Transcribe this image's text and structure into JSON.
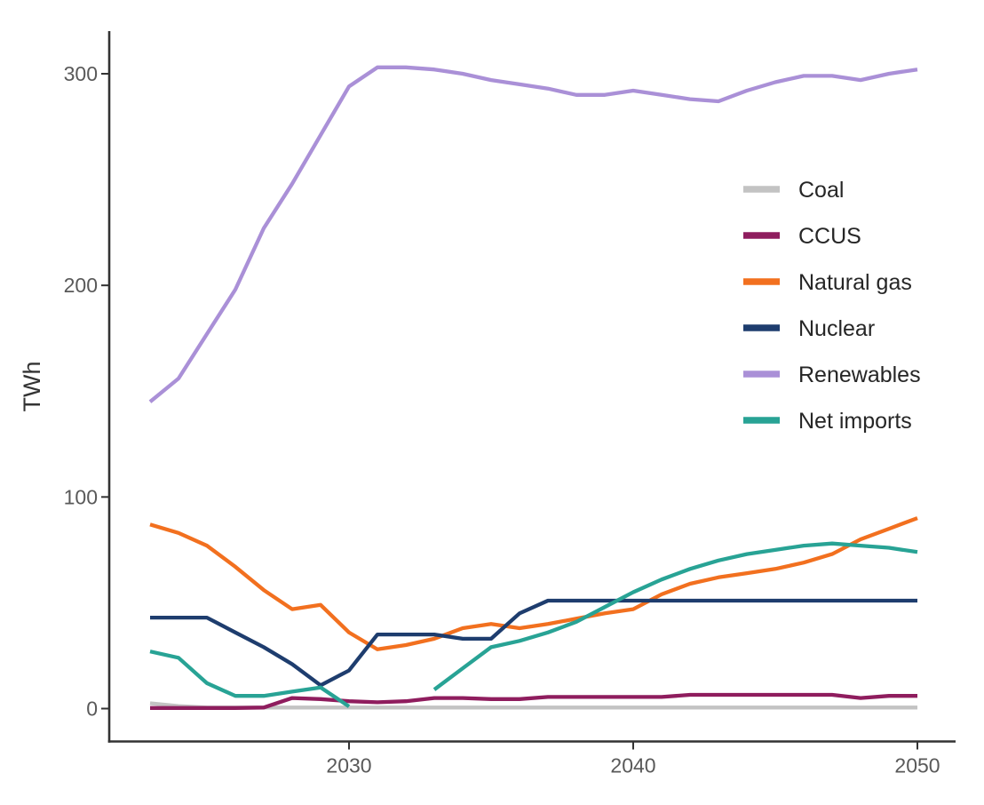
{
  "chart_data": {
    "type": "line",
    "title": "",
    "xlabel": "",
    "ylabel": "TWh",
    "grid": false,
    "legend_position": "inside-right",
    "xlim": [
      2021.6,
      2051.3
    ],
    "ylim": [
      -15.5,
      320
    ],
    "x_ticks": [
      2030,
      2040,
      2050
    ],
    "y_ticks": [
      0,
      100,
      200,
      300
    ],
    "x": [
      2023,
      2024,
      2025,
      2026,
      2027,
      2028,
      2029,
      2030,
      2031,
      2032,
      2033,
      2034,
      2035,
      2036,
      2037,
      2038,
      2039,
      2040,
      2041,
      2042,
      2043,
      2044,
      2045,
      2046,
      2047,
      2048,
      2049,
      2050
    ],
    "series": [
      {
        "name": "Coal",
        "color": "#c3c3c3",
        "values": [
          2.5,
          1.2,
          0.5,
          0.5,
          0.5,
          0.5,
          0.5,
          0.5,
          0.5,
          0.5,
          0.5,
          0.5,
          0.5,
          0.5,
          0.5,
          0.5,
          0.5,
          0.5,
          0.5,
          0.5,
          0.5,
          0.5,
          0.5,
          0.5,
          0.5,
          0.5,
          0.5,
          0.5
        ]
      },
      {
        "name": "CCUS",
        "color": "#8f1d5e",
        "values": [
          0.3,
          0.3,
          0.3,
          0.3,
          0.5,
          5,
          4.5,
          3.5,
          3,
          3.5,
          5,
          5,
          4.5,
          4.5,
          5.5,
          5.5,
          5.5,
          5.5,
          5.5,
          6.5,
          6.5,
          6.5,
          6.5,
          6.5,
          6.5,
          5,
          6,
          6
        ]
      },
      {
        "name": "Natural gas",
        "color": "#f2701f",
        "values": [
          87,
          83,
          77,
          67,
          56,
          47,
          49,
          36,
          28,
          30,
          33,
          38,
          40,
          38,
          40,
          42.5,
          45,
          47,
          54,
          59,
          62,
          64,
          66,
          69,
          73,
          80,
          85,
          90
        ]
      },
      {
        "name": "Nuclear",
        "color": "#1e3d6e",
        "values": [
          43,
          43,
          43,
          36,
          29,
          21,
          11,
          18,
          35,
          35,
          35,
          33,
          33,
          45,
          51,
          51,
          51,
          51,
          51,
          51,
          51,
          51,
          51,
          51,
          51,
          51,
          51,
          51
        ]
      },
      {
        "name": "Renewables",
        "color": "#aa90d7",
        "values": [
          145,
          156,
          177,
          198,
          227,
          248,
          271,
          294,
          303,
          303,
          302,
          300,
          297,
          295,
          293,
          290,
          290,
          292,
          290,
          288,
          287,
          292,
          296,
          299,
          299,
          297,
          300,
          302
        ]
      },
      {
        "name": "Net imports",
        "color": "#28a395",
        "values": [
          27,
          24,
          12,
          6,
          6,
          8,
          10,
          1,
          null,
          null,
          9,
          19,
          29,
          32,
          36,
          41,
          48,
          55,
          61,
          66,
          70,
          73,
          75,
          77,
          78,
          77,
          76,
          74
        ]
      }
    ]
  },
  "axes": {
    "spine_color": "#333333",
    "tick_color": "#333333",
    "tick_label_color": "#595959",
    "axis_title_color": "#333333",
    "x_tick_labels": [
      "2030",
      "2040",
      "2050"
    ],
    "y_tick_labels": [
      "0",
      "100",
      "200",
      "300"
    ]
  },
  "legend": {
    "items": [
      "Coal",
      "CCUS",
      "Natural gas",
      "Nuclear",
      "Renewables",
      "Net imports"
    ]
  }
}
